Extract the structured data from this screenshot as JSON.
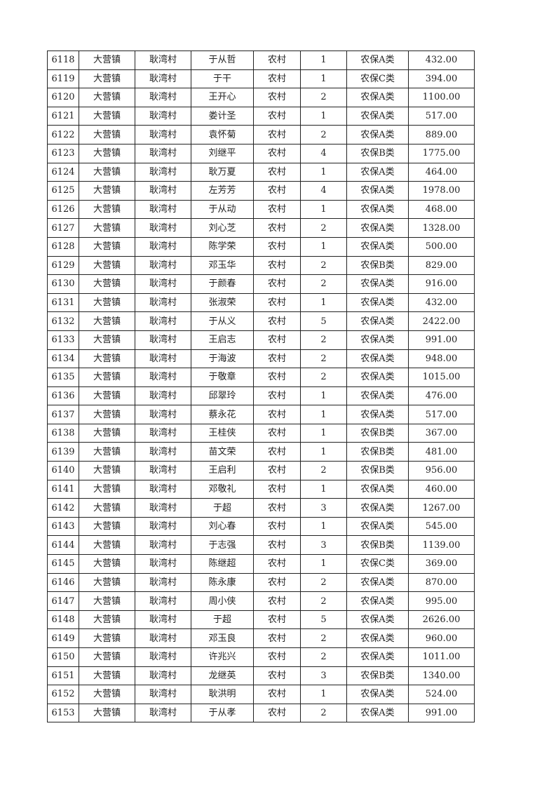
{
  "table": {
    "rows": [
      [
        "6118",
        "大营镇",
        "耿湾村",
        "于从哲",
        "农村",
        "1",
        "农保A类",
        "432.00"
      ],
      [
        "6119",
        "大营镇",
        "耿湾村",
        "于干",
        "农村",
        "1",
        "农保C类",
        "394.00"
      ],
      [
        "6120",
        "大营镇",
        "耿湾村",
        "王开心",
        "农村",
        "2",
        "农保A类",
        "1100.00"
      ],
      [
        "6121",
        "大营镇",
        "耿湾村",
        "娄计圣",
        "农村",
        "1",
        "农保A类",
        "517.00"
      ],
      [
        "6122",
        "大营镇",
        "耿湾村",
        "袁怀菊",
        "农村",
        "2",
        "农保A类",
        "889.00"
      ],
      [
        "6123",
        "大营镇",
        "耿湾村",
        "刘继平",
        "农村",
        "4",
        "农保B类",
        "1775.00"
      ],
      [
        "6124",
        "大营镇",
        "耿湾村",
        "耿万夏",
        "农村",
        "1",
        "农保A类",
        "464.00"
      ],
      [
        "6125",
        "大营镇",
        "耿湾村",
        "左芳芳",
        "农村",
        "4",
        "农保A类",
        "1978.00"
      ],
      [
        "6126",
        "大营镇",
        "耿湾村",
        "于从动",
        "农村",
        "1",
        "农保A类",
        "468.00"
      ],
      [
        "6127",
        "大营镇",
        "耿湾村",
        "刘心芝",
        "农村",
        "2",
        "农保A类",
        "1328.00"
      ],
      [
        "6128",
        "大营镇",
        "耿湾村",
        "陈学荣",
        "农村",
        "1",
        "农保A类",
        "500.00"
      ],
      [
        "6129",
        "大营镇",
        "耿湾村",
        "邓玉华",
        "农村",
        "2",
        "农保B类",
        "829.00"
      ],
      [
        "6130",
        "大营镇",
        "耿湾村",
        "于颜春",
        "农村",
        "2",
        "农保A类",
        "916.00"
      ],
      [
        "6131",
        "大营镇",
        "耿湾村",
        "张淑荣",
        "农村",
        "1",
        "农保A类",
        "432.00"
      ],
      [
        "6132",
        "大营镇",
        "耿湾村",
        "于从义",
        "农村",
        "5",
        "农保A类",
        "2422.00"
      ],
      [
        "6133",
        "大营镇",
        "耿湾村",
        "王启志",
        "农村",
        "2",
        "农保A类",
        "991.00"
      ],
      [
        "6134",
        "大营镇",
        "耿湾村",
        "于海波",
        "农村",
        "2",
        "农保A类",
        "948.00"
      ],
      [
        "6135",
        "大营镇",
        "耿湾村",
        "于敬章",
        "农村",
        "2",
        "农保A类",
        "1015.00"
      ],
      [
        "6136",
        "大营镇",
        "耿湾村",
        "邱翠玲",
        "农村",
        "1",
        "农保A类",
        "476.00"
      ],
      [
        "6137",
        "大营镇",
        "耿湾村",
        "蔡永花",
        "农村",
        "1",
        "农保A类",
        "517.00"
      ],
      [
        "6138",
        "大营镇",
        "耿湾村",
        "王桂侠",
        "农村",
        "1",
        "农保B类",
        "367.00"
      ],
      [
        "6139",
        "大营镇",
        "耿湾村",
        "苗文荣",
        "农村",
        "1",
        "农保B类",
        "481.00"
      ],
      [
        "6140",
        "大营镇",
        "耿湾村",
        "王启利",
        "农村",
        "2",
        "农保B类",
        "956.00"
      ],
      [
        "6141",
        "大营镇",
        "耿湾村",
        "邓敬礼",
        "农村",
        "1",
        "农保A类",
        "460.00"
      ],
      [
        "6142",
        "大营镇",
        "耿湾村",
        "于超",
        "农村",
        "3",
        "农保A类",
        "1267.00"
      ],
      [
        "6143",
        "大营镇",
        "耿湾村",
        "刘心春",
        "农村",
        "1",
        "农保A类",
        "545.00"
      ],
      [
        "6144",
        "大营镇",
        "耿湾村",
        "于志强",
        "农村",
        "3",
        "农保B类",
        "1139.00"
      ],
      [
        "6145",
        "大营镇",
        "耿湾村",
        "陈继超",
        "农村",
        "1",
        "农保C类",
        "369.00"
      ],
      [
        "6146",
        "大营镇",
        "耿湾村",
        "陈永康",
        "农村",
        "2",
        "农保A类",
        "870.00"
      ],
      [
        "6147",
        "大营镇",
        "耿湾村",
        "周小侠",
        "农村",
        "2",
        "农保A类",
        "995.00"
      ],
      [
        "6148",
        "大营镇",
        "耿湾村",
        "于超",
        "农村",
        "5",
        "农保A类",
        "2626.00"
      ],
      [
        "6149",
        "大营镇",
        "耿湾村",
        "邓玉良",
        "农村",
        "2",
        "农保A类",
        "960.00"
      ],
      [
        "6150",
        "大营镇",
        "耿湾村",
        "许兆兴",
        "农村",
        "2",
        "农保A类",
        "1011.00"
      ],
      [
        "6151",
        "大营镇",
        "耿湾村",
        "龙继英",
        "农村",
        "3",
        "农保B类",
        "1340.00"
      ],
      [
        "6152",
        "大营镇",
        "耿湾村",
        "耿洪明",
        "农村",
        "1",
        "农保A类",
        "524.00"
      ],
      [
        "6153",
        "大营镇",
        "耿湾村",
        "于从孝",
        "农村",
        "2",
        "农保A类",
        "991.00"
      ]
    ]
  }
}
